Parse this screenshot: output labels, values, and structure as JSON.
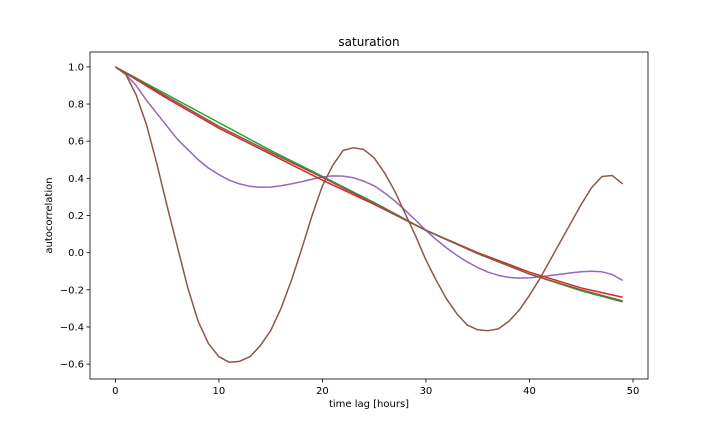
{
  "chart_data": {
    "type": "line",
    "title": "saturation",
    "xlabel": "time lag [hours]",
    "ylabel": "autocorrelation",
    "xlim": [
      -2.45,
      51.45
    ],
    "ylim": [
      -0.68,
      1.08
    ],
    "xticks": [
      0,
      10,
      20,
      30,
      40,
      50
    ],
    "xtick_labels": [
      "0",
      "10",
      "20",
      "30",
      "40",
      "50"
    ],
    "yticks": [
      -0.6,
      -0.4,
      -0.2,
      0.0,
      0.2,
      0.4,
      0.6,
      0.8,
      1.0
    ],
    "ytick_labels": [
      "−0.6",
      "−0.4",
      "−0.2",
      "0.0",
      "0.2",
      "0.4",
      "0.6",
      "0.8",
      "1.0"
    ],
    "grid": false,
    "legend": "none",
    "series": [
      {
        "color": "#9467bd",
        "x": [
          0,
          1,
          2,
          3,
          4,
          5,
          6,
          7,
          8,
          9,
          10,
          11,
          12,
          13,
          14,
          15,
          16,
          17,
          18,
          19,
          20,
          21,
          22,
          23,
          24,
          25,
          26,
          27,
          28,
          29,
          30,
          31,
          32,
          33,
          34,
          35,
          36,
          37,
          38,
          39,
          40,
          41,
          42,
          43,
          44,
          45,
          46,
          47,
          48,
          49
        ],
        "y": [
          1.0,
          0.96,
          0.9,
          0.82,
          0.75,
          0.68,
          0.61,
          0.555,
          0.5,
          0.455,
          0.42,
          0.39,
          0.37,
          0.357,
          0.352,
          0.353,
          0.36,
          0.37,
          0.382,
          0.395,
          0.408,
          0.413,
          0.412,
          0.403,
          0.385,
          0.36,
          0.322,
          0.278,
          0.228,
          0.175,
          0.12,
          0.07,
          0.025,
          -0.015,
          -0.05,
          -0.08,
          -0.105,
          -0.122,
          -0.133,
          -0.137,
          -0.136,
          -0.13,
          -0.123,
          -0.116,
          -0.109,
          -0.103,
          -0.1,
          -0.103,
          -0.118,
          -0.15
        ]
      },
      {
        "color": "#8c564b",
        "x": [
          0,
          1,
          2,
          3,
          4,
          5,
          6,
          7,
          8,
          9,
          10,
          11,
          12,
          13,
          14,
          15,
          16,
          17,
          18,
          19,
          20,
          21,
          22,
          23,
          24,
          25,
          26,
          27,
          28,
          29,
          30,
          31,
          32,
          33,
          34,
          35,
          36,
          37,
          38,
          39,
          40,
          41,
          42,
          43,
          44,
          45,
          46,
          47,
          48,
          49
        ],
        "y": [
          1.0,
          0.96,
          0.85,
          0.69,
          0.48,
          0.25,
          0.03,
          -0.19,
          -0.37,
          -0.49,
          -0.56,
          -0.59,
          -0.585,
          -0.56,
          -0.5,
          -0.42,
          -0.3,
          -0.15,
          0.02,
          0.2,
          0.36,
          0.47,
          0.55,
          0.565,
          0.555,
          0.51,
          0.43,
          0.33,
          0.21,
          0.09,
          -0.04,
          -0.15,
          -0.25,
          -0.33,
          -0.39,
          -0.415,
          -0.42,
          -0.41,
          -0.37,
          -0.31,
          -0.23,
          -0.14,
          -0.04,
          0.06,
          0.16,
          0.26,
          0.35,
          0.41,
          0.415,
          0.37
        ]
      },
      {
        "color": "#d62728",
        "x": [
          0,
          5,
          10,
          15,
          20,
          25,
          30,
          35,
          40,
          45,
          49
        ],
        "y": [
          1.0,
          0.83,
          0.67,
          0.53,
          0.39,
          0.26,
          0.12,
          0.0,
          -0.105,
          -0.19,
          -0.24
        ]
      },
      {
        "color": "#2ca02c",
        "x": [
          0,
          5,
          10,
          15,
          20,
          25,
          30,
          35,
          40,
          45,
          49
        ],
        "y": [
          1.0,
          0.85,
          0.7,
          0.55,
          0.41,
          0.27,
          0.12,
          -0.005,
          -0.115,
          -0.205,
          -0.265
        ]
      },
      {
        "color": "#8c564b",
        "x": [
          0,
          5,
          10,
          15,
          20,
          25,
          30,
          35,
          40,
          45,
          49
        ],
        "y": [
          1.0,
          0.84,
          0.68,
          0.54,
          0.405,
          0.265,
          0.12,
          -0.005,
          -0.115,
          -0.2,
          -0.26
        ]
      }
    ]
  }
}
